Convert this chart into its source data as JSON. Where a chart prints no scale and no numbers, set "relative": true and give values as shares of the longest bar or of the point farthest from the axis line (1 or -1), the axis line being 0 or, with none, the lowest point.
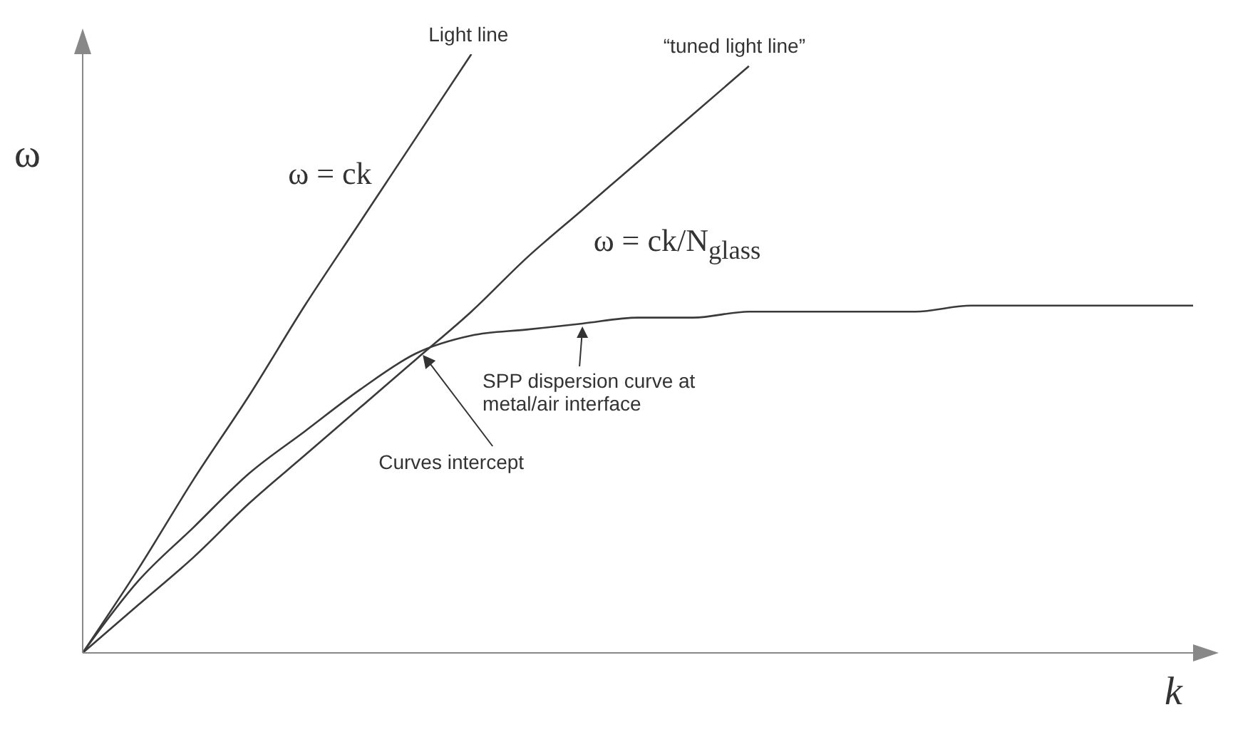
{
  "chart_data": {
    "type": "line",
    "relative": true,
    "xlabel": "k",
    "ylabel": "ω",
    "categories": [
      null,
      null,
      null,
      null,
      null,
      null,
      null,
      null,
      null,
      null,
      null,
      null,
      null,
      null,
      null,
      null,
      null,
      null,
      null,
      null,
      null
    ],
    "marker": "none",
    "line_style": "solid",
    "series": [
      {
        "name": "Light line",
        "color": "#3a3a3a",
        "values": [
          0,
          0.14,
          0.29,
          0.43,
          0.58,
          0.72,
          0.86,
          1.0,
          null,
          null,
          null,
          null,
          null,
          null,
          null,
          null,
          null,
          null,
          null,
          null,
          null
        ]
      },
      {
        "name": "“tuned light line”",
        "color": "#3a3a3a",
        "values": [
          0,
          0.08,
          0.16,
          0.25,
          0.33,
          0.41,
          0.49,
          0.57,
          0.66,
          0.74,
          0.82,
          0.9,
          0.98,
          null,
          null,
          null,
          null,
          null,
          null,
          null,
          null
        ]
      },
      {
        "name": "SPP dispersion curve at metal/air interface",
        "color": "#3a3a3a",
        "values": [
          0,
          0.12,
          0.21,
          0.3,
          0.37,
          0.44,
          0.5,
          0.53,
          0.54,
          0.55,
          0.56,
          0.56,
          0.57,
          0.57,
          0.57,
          0.57,
          0.58,
          0.58,
          0.58,
          0.58,
          0.58
        ]
      }
    ],
    "annotations": [
      "ω = ck",
      "ω = ck/N$_{glass}$",
      "Curves intercept"
    ]
  }
}
